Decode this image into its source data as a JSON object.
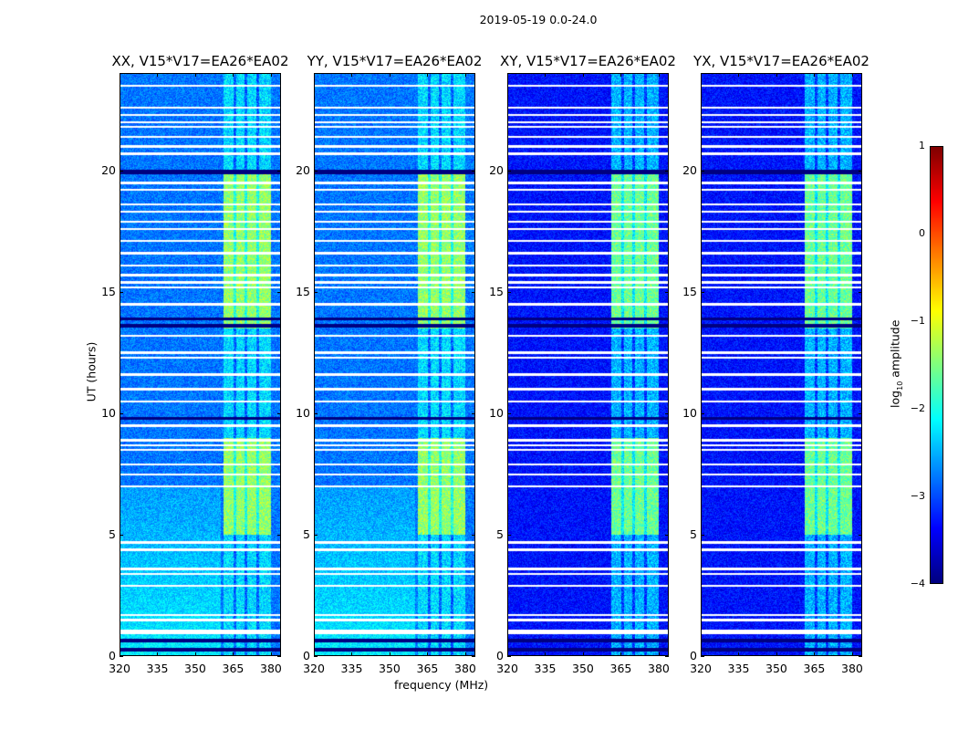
{
  "chart_data": {
    "type": "heatmap",
    "title": "2019-05-19 0.0-24.0",
    "xlabel": "frequency (MHz)",
    "ylabel": "UT (hours)",
    "xlim": [
      320,
      384
    ],
    "ylim": [
      0,
      24
    ],
    "xticks": [
      "320",
      "335",
      "350",
      "365",
      "380"
    ],
    "xtick_values": [
      320,
      335,
      350,
      365,
      380
    ],
    "yticks": [
      "0",
      "5",
      "10",
      "15",
      "20"
    ],
    "ytick_values": [
      0,
      5,
      10,
      15,
      20
    ],
    "panels": [
      {
        "title": "XX, V15*V17=EA26*EA02",
        "background_log_amp": -2.8
      },
      {
        "title": "YY, V15*V17=EA26*EA02",
        "background_log_amp": -2.8
      },
      {
        "title": "XY, V15*V17=EA26*EA02",
        "background_log_amp": -3.3
      },
      {
        "title": "YX, V15*V17=EA26*EA02",
        "background_log_amp": -3.3
      }
    ],
    "rfi_band_mhz": [
      361,
      380
    ],
    "rfi_active_hours": [
      [
        5,
        9
      ],
      [
        13.5,
        20
      ]
    ],
    "flagged_hours": [
      0.95,
      1.05,
      1.5,
      1.7,
      2.9,
      3.4,
      3.6,
      4.4,
      4.7,
      7.0,
      7.5,
      7.9,
      8.5,
      8.7,
      8.9,
      9.5,
      10.5,
      11.0,
      11.6,
      12.3,
      12.5,
      13.2,
      14.5,
      15.2,
      15.4,
      15.7,
      16.1,
      16.6,
      17.1,
      17.6,
      17.9,
      18.3,
      18.6,
      19.2,
      19.5,
      20.7,
      21.0,
      21.4,
      21.8,
      22.0,
      22.3,
      22.6,
      23.5
    ],
    "low_hours": [
      [
        0.2,
        0.35
      ],
      [
        0.6,
        0.75
      ],
      [
        9.75,
        9.85
      ],
      [
        13.55,
        13.7
      ],
      [
        13.85,
        13.95
      ],
      [
        19.85,
        20.05
      ]
    ],
    "colorbar": {
      "label": "log10 amplitude",
      "label_main": "log",
      "label_sub": "10",
      "label_rest": " amplitude",
      "range": [
        -4,
        1
      ],
      "ticks": [
        "1",
        "0",
        "−1",
        "−2",
        "−3",
        "−4"
      ],
      "tick_values": [
        1,
        0,
        -1,
        -2,
        -3,
        -4
      ],
      "colormap": "jet"
    }
  }
}
